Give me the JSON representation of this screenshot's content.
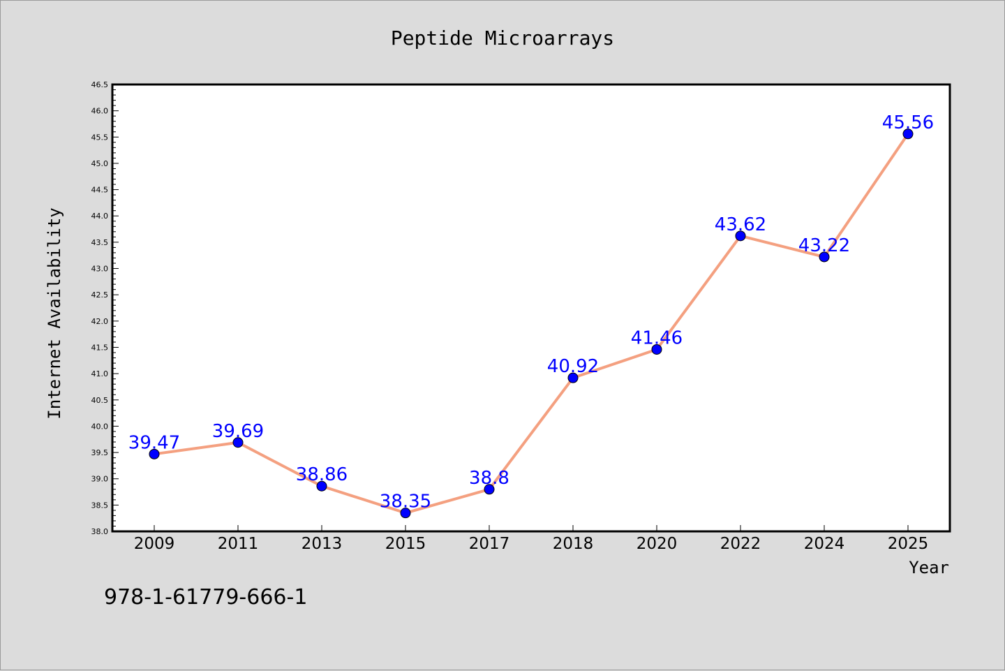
{
  "chart_data": {
    "type": "line",
    "title": "Peptide Microarrays",
    "xlabel": "Year",
    "ylabel": "Internet Availability",
    "categories": [
      "2009",
      "2011",
      "2013",
      "2015",
      "2017",
      "2018",
      "2020",
      "2022",
      "2024",
      "2025"
    ],
    "values": [
      39.47,
      39.69,
      38.86,
      38.35,
      38.8,
      40.92,
      41.46,
      43.62,
      43.22,
      45.56
    ],
    "data_labels": [
      "39.47",
      "39.69",
      "38.86",
      "38.35",
      "38.8",
      "40.92",
      "41.46",
      "43.62",
      "43.22",
      "45.56"
    ],
    "ylim": [
      38.0,
      46.5
    ],
    "y_ticks": [
      "38.0",
      "38.5",
      "39.0",
      "39.5",
      "40.0",
      "40.5",
      "41.0",
      "41.5",
      "42.0",
      "42.5",
      "43.0",
      "43.5",
      "44.0",
      "44.5",
      "45.0",
      "45.5",
      "46.0",
      "46.5"
    ],
    "grid": false,
    "legend": "none",
    "colors": {
      "line": "#f4a080",
      "marker": "#0000ff",
      "data_label": "#0000ff",
      "plot_background": "#ffffff",
      "figure_background": "#dcdcdc"
    }
  },
  "footnote": "978-1-61779-666-1"
}
